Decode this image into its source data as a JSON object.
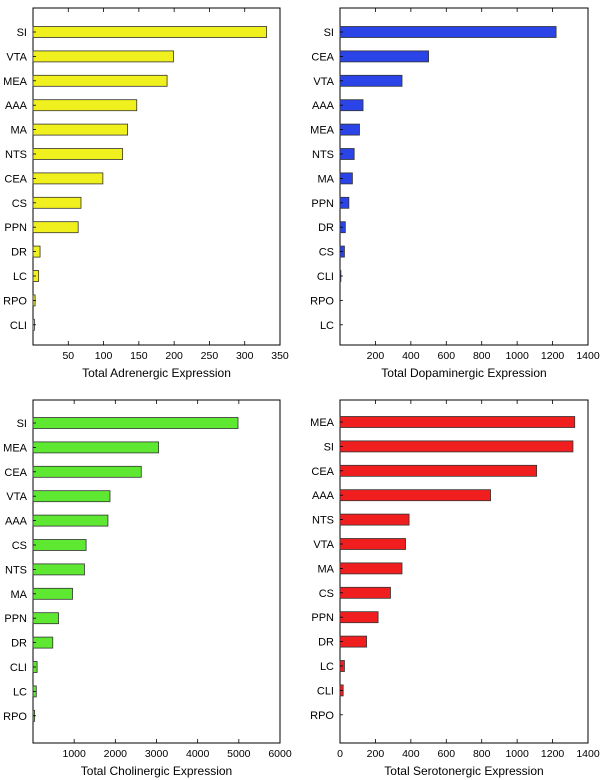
{
  "chart_data": [
    {
      "type": "bar",
      "orientation": "horizontal",
      "categories": [
        "SI",
        "VTA",
        "MEA",
        "AAA",
        "MA",
        "NTS",
        "CEA",
        "CS",
        "PPN",
        "DR",
        "LC",
        "RPO",
        "CLI"
      ],
      "values": [
        331,
        199,
        190,
        147,
        134,
        127,
        99,
        68,
        64,
        10,
        8,
        3,
        2
      ],
      "xlabel": "Total Adrenergic Expression",
      "xlim": [
        0,
        350
      ],
      "xticks": [
        50,
        100,
        150,
        200,
        250,
        300,
        350
      ],
      "color": "#f0f01e"
    },
    {
      "type": "bar",
      "orientation": "horizontal",
      "categories": [
        "SI",
        "CEA",
        "VTA",
        "AAA",
        "MEA",
        "NTS",
        "MA",
        "PPN",
        "DR",
        "CS",
        "CLI",
        "RPO",
        "LC"
      ],
      "values": [
        1220,
        500,
        350,
        130,
        110,
        80,
        70,
        50,
        30,
        25,
        5,
        0,
        0
      ],
      "xlabel": "Total Dopaminergic Expression",
      "xlim": [
        0,
        1400
      ],
      "xticks": [
        200,
        400,
        600,
        800,
        1000,
        1200,
        1400
      ],
      "color": "#2a44e8"
    },
    {
      "type": "bar",
      "orientation": "horizontal",
      "categories": [
        "SI",
        "MEA",
        "CEA",
        "VTA",
        "AAA",
        "CS",
        "NTS",
        "MA",
        "PPN",
        "DR",
        "CLI",
        "LC",
        "RPO"
      ],
      "values": [
        4980,
        3050,
        2630,
        1870,
        1820,
        1290,
        1250,
        960,
        620,
        480,
        100,
        80,
        40
      ],
      "xlabel": "Total Cholinergic Expression",
      "xlim": [
        0,
        6000
      ],
      "xticks": [
        1000,
        2000,
        3000,
        4000,
        5000,
        6000
      ],
      "color": "#5ee832"
    },
    {
      "type": "bar",
      "orientation": "horizontal",
      "categories": [
        "MEA",
        "SI",
        "CEA",
        "AAA",
        "NTS",
        "VTA",
        "MA",
        "CS",
        "PPN",
        "DR",
        "LC",
        "CLI",
        "RPO"
      ],
      "values": [
        1325,
        1315,
        1110,
        850,
        390,
        370,
        350,
        285,
        215,
        150,
        25,
        18,
        0
      ],
      "xlabel": "Total Serotonergic Expression",
      "xlim": [
        0,
        1400
      ],
      "xticks": [
        0,
        200,
        400,
        600,
        800,
        1000,
        1200,
        1400
      ],
      "color": "#f01e1e"
    }
  ]
}
